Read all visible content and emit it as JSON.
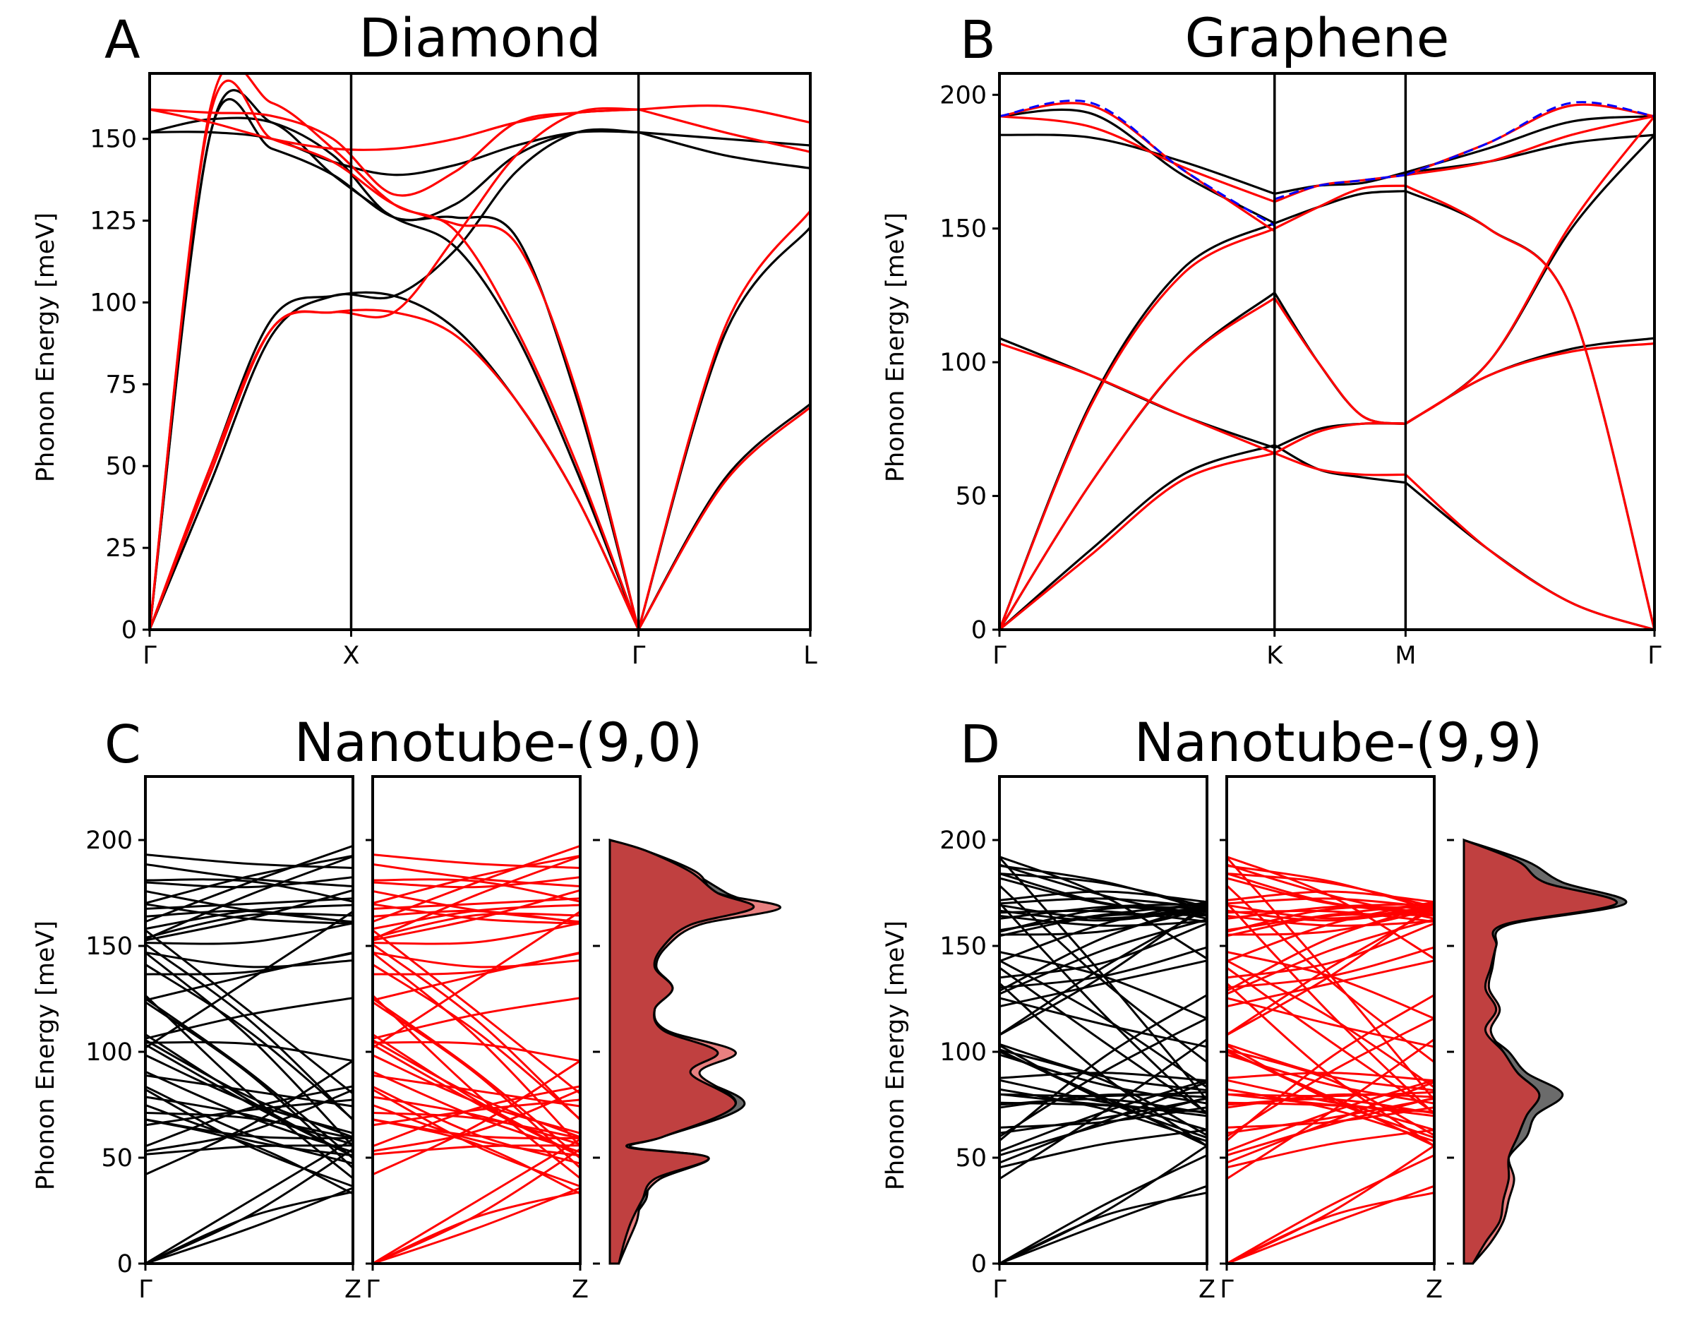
{
  "colors": {
    "reference": "#000000",
    "model": "#ff0000",
    "dashed": "#0000ff",
    "dos_ref_fill": "#6b6b6b",
    "dos_model_fill": "#e88080",
    "dos_overlap_fill": "#c04040"
  },
  "panels": {
    "A": {
      "letter": "A",
      "title": "Diamond",
      "ylabel": "Phonon Energy [meV]",
      "yticks": [
        "0",
        "25",
        "50",
        "75",
        "100",
        "125",
        "150"
      ],
      "xticks": [
        "Γ",
        "X",
        "Γ",
        "L"
      ]
    },
    "B": {
      "letter": "B",
      "title": "Graphene",
      "ylabel": "Phonon Energy [meV]",
      "yticks": [
        "0",
        "50",
        "100",
        "150",
        "200"
      ],
      "xticks": [
        "Γ",
        "K",
        "M",
        "Γ"
      ]
    },
    "C": {
      "letter": "C",
      "title": "Nanotube-(9,0)",
      "ylabel": "Phonon Energy [meV]",
      "yticks": [
        "0",
        "50",
        "100",
        "150",
        "200"
      ],
      "xticks_left": [
        "Γ",
        "Z"
      ],
      "xticks_mid": [
        "Γ",
        "Z"
      ]
    },
    "D": {
      "letter": "D",
      "title": "Nanotube-(9,9)",
      "ylabel": "Phonon Energy [meV]",
      "yticks": [
        "0",
        "50",
        "100",
        "150",
        "200"
      ],
      "xticks_left": [
        "Γ",
        "Z"
      ],
      "xticks_mid": [
        "Γ",
        "Z"
      ]
    }
  },
  "chart_data": [
    {
      "panel": "A",
      "type": "line",
      "title": "Diamond",
      "ylabel": "Phonon Energy [meV]",
      "ylim": [
        0,
        170
      ],
      "xticks": [
        "Γ",
        "X",
        "Γ",
        "L"
      ],
      "series": [
        {
          "color": "black",
          "values": [
            [
              0,
              152,
              155,
              139,
              126,
              117,
              90,
              48,
              0
            ],
            [
              0,
              152,
              147,
              139,
              126,
              126,
              120,
              70,
              0
            ],
            [
              0,
              50,
              95,
              102,
              102,
              92,
              70,
              40,
              0
            ],
            [
              0,
              45,
              90,
              102,
              102,
              116,
              140,
              152,
              152
            ],
            [
              152,
              152,
              150,
              143,
              139,
              142,
              148,
              152,
              152
            ],
            [
              152,
              156,
              155,
              145,
              126,
              130,
              145,
              152,
              152
            ],
            [
              152,
              145,
              141
            ],
            [
              152,
              150,
              148
            ],
            [
              0,
              46,
              69
            ],
            [
              0,
              90,
              123
            ]
          ]
        },
        {
          "color": "red",
          "values": [
            [
              0,
              160,
              161,
              147,
              130,
              122,
              92,
              50,
              0
            ],
            [
              0,
              158,
              150,
              143,
              130,
              124,
              118,
              72,
              0
            ],
            [
              0,
              50,
              92,
              97,
              97,
              90,
              70,
              40,
              0
            ],
            [
              0,
              48,
              92,
              97,
              97,
              120,
              145,
              158,
              159
            ],
            [
              159,
              155,
              150,
              147,
              147,
              150,
              155,
              158,
              159
            ],
            [
              159,
              158,
              157,
              150,
              133,
              140,
              155,
              158,
              159
            ],
            [
              159,
              160,
              155
            ],
            [
              159,
              152,
              146
            ],
            [
              0,
              45,
              68
            ],
            [
              0,
              92,
              128
            ]
          ]
        }
      ]
    },
    {
      "panel": "B",
      "type": "line",
      "title": "Graphene",
      "ylabel": "Phonon Energy [meV]",
      "ylim": [
        0,
        208
      ],
      "xticks": [
        "Γ",
        "K",
        "M",
        "Γ"
      ],
      "series": [
        {
          "color": "black",
          "values": [
            [
              0,
              30,
              58,
              69
            ],
            [
              0,
              55,
              100,
              126
            ],
            [
              109,
              95,
              80,
              68
            ],
            [
              0,
              85,
              135,
              152
            ],
            [
              192,
              193,
              170,
              152
            ],
            [
              185,
              184,
              175,
              163
            ],
            [
              69,
              60,
              57,
              55
            ],
            [
              126,
              100,
              80,
              77
            ],
            [
              68,
              75,
              77,
              77
            ],
            [
              152,
              158,
              163,
              164
            ],
            [
              163,
              166,
              167,
              171
            ],
            [
              55,
              30,
              10,
              0
            ],
            [
              77,
              95,
              105,
              109
            ],
            [
              77,
              100,
              150,
              185
            ],
            [
              164,
              150,
              120,
              0
            ],
            [
              171,
              180,
              190,
              192
            ],
            [
              171,
              175,
              182,
              185
            ]
          ]
        },
        {
          "color": "red",
          "values": [
            [
              0,
              28,
              56,
              66
            ],
            [
              0,
              55,
              100,
              124
            ],
            [
              107,
              95,
              80,
              66
            ],
            [
              0,
              84,
              133,
              150
            ],
            [
              192,
              196,
              172,
              149
            ],
            [
              192,
              188,
              173,
              160
            ],
            [
              66,
              60,
              58,
              58
            ],
            [
              124,
              100,
              80,
              77
            ],
            [
              66,
              74,
              77,
              77
            ],
            [
              150,
              158,
              165,
              166
            ],
            [
              160,
              166,
              168,
              170
            ],
            [
              58,
              30,
              10,
              0
            ],
            [
              77,
              95,
              104,
              107
            ],
            [
              77,
              100,
              152,
              192
            ],
            [
              166,
              150,
              120,
              0
            ],
            [
              170,
              182,
              196,
              192
            ],
            [
              170,
              175,
              185,
              192
            ]
          ]
        },
        {
          "color": "blue",
          "style": "dashed",
          "values": [
            [
              192,
              197,
              172,
              151
            ],
            [
              161,
              166,
              168,
              170
            ],
            [
              170,
              182,
              197,
              192
            ]
          ]
        }
      ]
    },
    {
      "panel": "C",
      "type": "line",
      "title": "Nanotube-(9,0)",
      "ylabel": "Phonon Energy [meV]",
      "ylim": [
        0,
        230
      ],
      "xticks": [
        "Γ",
        "Z"
      ],
      "series": [
        {
          "name": "",
          "color": "black",
          "count": 50
        },
        {
          "name": "",
          "color": "red",
          "count": 50
        }
      ],
      "dos": {
        "energy": [
          0,
          10,
          20,
          30,
          40,
          50,
          55,
          60,
          75,
          90,
          100,
          110,
          120,
          130,
          140,
          150,
          160,
          168,
          175,
          185,
          195,
          200
        ],
        "reference": [
          0.05,
          0.08,
          0.12,
          0.2,
          0.25,
          0.55,
          0.1,
          0.3,
          0.75,
          0.45,
          0.6,
          0.3,
          0.25,
          0.35,
          0.25,
          0.3,
          0.45,
          0.8,
          0.65,
          0.45,
          0.2,
          0.0
        ],
        "model": [
          0.05,
          0.1,
          0.15,
          0.18,
          0.28,
          0.55,
          0.12,
          0.3,
          0.7,
          0.5,
          0.7,
          0.32,
          0.25,
          0.35,
          0.26,
          0.32,
          0.5,
          0.95,
          0.6,
          0.48,
          0.2,
          0.0
        ]
      }
    },
    {
      "panel": "D",
      "type": "line",
      "title": "Nanotube-(9,9)",
      "ylabel": "Phonon Energy [meV]",
      "ylim": [
        0,
        230
      ],
      "xticks": [
        "Γ",
        "Z"
      ],
      "series": [
        {
          "name": "",
          "color": "black",
          "count": 60
        },
        {
          "name": "",
          "color": "red",
          "count": 60
        }
      ],
      "dos": {
        "energy": [
          0,
          10,
          20,
          30,
          40,
          50,
          60,
          70,
          80,
          90,
          100,
          110,
          120,
          130,
          140,
          150,
          160,
          170,
          180,
          190,
          200
        ],
        "reference": [
          0.05,
          0.12,
          0.2,
          0.22,
          0.25,
          0.25,
          0.35,
          0.4,
          0.55,
          0.35,
          0.25,
          0.12,
          0.18,
          0.12,
          0.15,
          0.18,
          0.25,
          0.9,
          0.55,
          0.35,
          0.0
        ],
        "model": [
          0.05,
          0.15,
          0.22,
          0.25,
          0.28,
          0.25,
          0.3,
          0.35,
          0.42,
          0.3,
          0.22,
          0.15,
          0.2,
          0.14,
          0.16,
          0.18,
          0.22,
          0.85,
          0.45,
          0.3,
          0.0
        ]
      }
    }
  ]
}
